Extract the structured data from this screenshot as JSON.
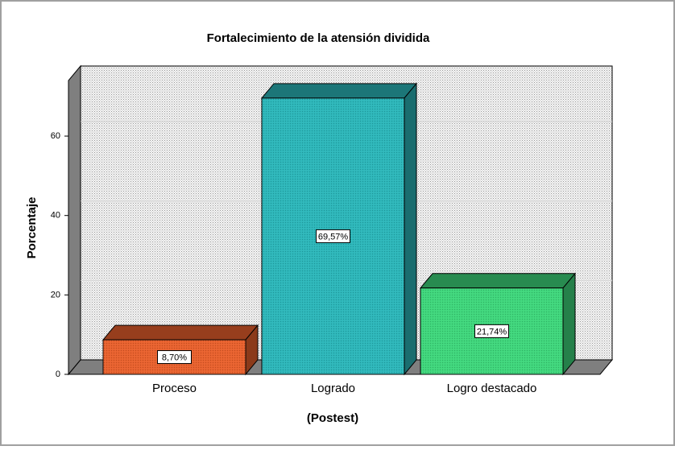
{
  "chart_data": {
    "type": "bar3d",
    "title": "Fortalecimiento de la atensión dividida",
    "x_label": "(Postest)",
    "y_label": "Porcentaje",
    "categories": [
      "Proceso",
      "Logrado",
      "Logro destacado"
    ],
    "values": [
      8.7,
      69.57,
      21.74
    ],
    "value_labels": [
      "8,70%",
      "69,57%",
      "21,74%"
    ],
    "colors": [
      "#e8602c",
      "#2bb6b9",
      "#3ed67b"
    ],
    "ylim": [
      0,
      74
    ],
    "yticks": [
      0,
      20,
      40,
      60
    ],
    "grid": true
  }
}
